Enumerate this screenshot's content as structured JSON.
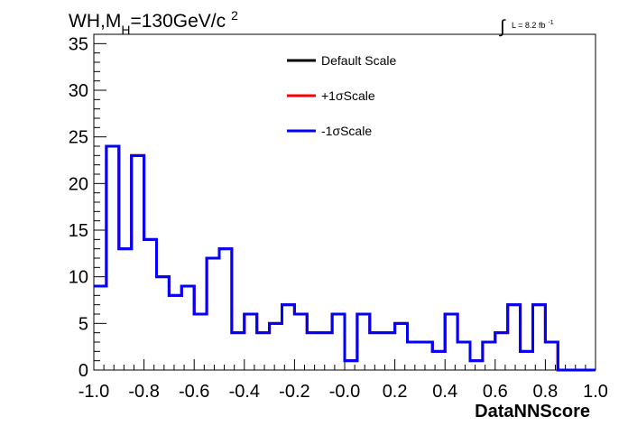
{
  "chart_data": {
    "type": "step-histogram",
    "title_parts": {
      "prefix": "WH,M",
      "subscript": "H",
      "value": "=130GeV/c",
      "superscript": "2"
    },
    "lumi": {
      "integral": "∫",
      "text": "L = 8.2 fb",
      "superscript": "-1"
    },
    "xlabel": "DataNNScore",
    "ylabel": "",
    "xlim": [
      -1.0,
      1.0
    ],
    "ylim": [
      0,
      36
    ],
    "x_ticks": [
      -1.0,
      -0.8,
      -0.6,
      -0.4,
      -0.2,
      0.0,
      0.2,
      0.4,
      0.6,
      0.8,
      1.0
    ],
    "x_tick_labels": [
      "-1.0",
      "-0.8",
      "-0.6",
      "-0.4",
      "-0.2",
      "-0.0",
      "0.2",
      "0.4",
      "0.6",
      "0.8",
      "1.0"
    ],
    "y_ticks": [
      0,
      5,
      10,
      15,
      20,
      25,
      30,
      35
    ],
    "y_tick_labels": [
      "0",
      "5",
      "10",
      "15",
      "20",
      "25",
      "30",
      "35"
    ],
    "bin_edges_start": -1.0,
    "bin_width": 0.05,
    "legend_position": "top-center",
    "series": [
      {
        "name": "Default Scale",
        "color": "#000000",
        "values": [
          9,
          24,
          13,
          23,
          14,
          10,
          8,
          9,
          6,
          12,
          13,
          4,
          6,
          4,
          5,
          7,
          6,
          4,
          4,
          6,
          1,
          6,
          4,
          4,
          5,
          3,
          3,
          2,
          6,
          3,
          1,
          3,
          4,
          7,
          2,
          7,
          3,
          0,
          0,
          0
        ]
      },
      {
        "name": "+1σScale",
        "color": "#ff0000",
        "values": [
          9,
          24,
          13,
          23,
          14,
          10,
          8,
          9,
          6,
          12,
          13,
          4,
          6,
          4,
          5,
          7,
          6,
          4,
          4,
          6,
          1,
          6,
          4,
          4,
          5,
          3,
          3,
          2,
          6,
          3,
          1,
          3,
          4,
          7,
          2,
          7,
          3,
          0,
          0,
          0
        ]
      },
      {
        "name": "-1σScale",
        "color": "#0000ff",
        "values": [
          9,
          24,
          13,
          23,
          14,
          10,
          8,
          9,
          6,
          12,
          13,
          4,
          6,
          4,
          5,
          7,
          6,
          4,
          4,
          6,
          1,
          6,
          4,
          4,
          5,
          3,
          3,
          2,
          6,
          3,
          1,
          3,
          4,
          7,
          2,
          7,
          3,
          0,
          0,
          0
        ]
      }
    ]
  }
}
